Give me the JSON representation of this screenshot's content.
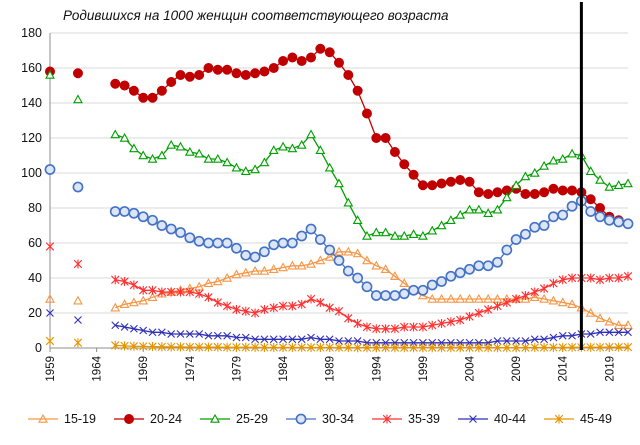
{
  "chart_data": {
    "type": "line",
    "title": "Родившихся на 1000 женщин соответствующего возраста",
    "xlabel": "",
    "ylabel": "",
    "xlim": [
      1959,
      2021
    ],
    "ylim": [
      0,
      180
    ],
    "yticks": [
      0,
      20,
      40,
      60,
      80,
      100,
      120,
      140,
      160,
      180
    ],
    "xticks": [
      1959,
      1964,
      1969,
      1974,
      1979,
      1984,
      1989,
      1994,
      1999,
      2004,
      2009,
      2014,
      2019
    ],
    "grid": "horizontal",
    "legend_position": "bottom",
    "vertical_marker_year": 2016,
    "series": [
      {
        "name": "15-19",
        "color": "#f79646",
        "marker": "triangle",
        "x": [
          1959,
          1962,
          1966,
          1967,
          1968,
          1969,
          1970,
          1971,
          1972,
          1973,
          1974,
          1975,
          1976,
          1977,
          1978,
          1979,
          1980,
          1981,
          1982,
          1983,
          1984,
          1985,
          1986,
          1987,
          1988,
          1989,
          1990,
          1991,
          1992,
          1993,
          1994,
          1995,
          1996,
          1997,
          1998,
          1999,
          2000,
          2001,
          2002,
          2003,
          2004,
          2005,
          2006,
          2007,
          2008,
          2009,
          2010,
          2011,
          2012,
          2013,
          2014,
          2015,
          2016,
          2017,
          2018,
          2019,
          2020,
          2021
        ],
        "y": [
          28,
          27,
          23,
          25,
          26,
          27,
          29,
          31,
          32,
          33,
          34,
          35,
          37,
          38,
          40,
          42,
          43,
          44,
          44,
          45,
          46,
          47,
          47,
          48,
          50,
          52,
          55,
          55,
          54,
          50,
          47,
          45,
          41,
          37,
          33,
          30,
          28,
          28,
          28,
          28,
          28,
          28,
          28,
          28,
          28,
          28,
          28,
          29,
          28,
          27,
          26,
          25,
          23,
          20,
          17,
          15,
          13,
          13
        ]
      },
      {
        "name": "20-24",
        "color": "#c00000",
        "marker": "circle",
        "x": [
          1959,
          1962,
          1966,
          1967,
          1968,
          1969,
          1970,
          1971,
          1972,
          1973,
          1974,
          1975,
          1976,
          1977,
          1978,
          1979,
          1980,
          1981,
          1982,
          1983,
          1984,
          1985,
          1986,
          1987,
          1988,
          1989,
          1990,
          1991,
          1992,
          1993,
          1994,
          1995,
          1996,
          1997,
          1998,
          1999,
          2000,
          2001,
          2002,
          2003,
          2004,
          2005,
          2006,
          2007,
          2008,
          2009,
          2010,
          2011,
          2012,
          2013,
          2014,
          2015,
          2016,
          2017,
          2018,
          2019,
          2020,
          2021
        ],
        "y": [
          158,
          157,
          151,
          150,
          147,
          143,
          143,
          147,
          152,
          156,
          155,
          156,
          160,
          159,
          159,
          157,
          156,
          157,
          158,
          160,
          164,
          166,
          164,
          166,
          171,
          169,
          163,
          156,
          147,
          134,
          120,
          120,
          112,
          105,
          99,
          93,
          93,
          94,
          95,
          96,
          95,
          89,
          88,
          89,
          90,
          91,
          88,
          88,
          89,
          91,
          90,
          90,
          89,
          85,
          80,
          75,
          73,
          71
        ]
      },
      {
        "name": "25-29",
        "color": "#00a000",
        "marker": "triangle-open",
        "x": [
          1959,
          1962,
          1966,
          1967,
          1968,
          1969,
          1970,
          1971,
          1972,
          1973,
          1974,
          1975,
          1976,
          1977,
          1978,
          1979,
          1980,
          1981,
          1982,
          1983,
          1984,
          1985,
          1986,
          1987,
          1988,
          1989,
          1990,
          1991,
          1992,
          1993,
          1994,
          1995,
          1996,
          1997,
          1998,
          1999,
          2000,
          2001,
          2002,
          2003,
          2004,
          2005,
          2006,
          2007,
          2008,
          2009,
          2010,
          2011,
          2012,
          2013,
          2014,
          2015,
          2016,
          2017,
          2018,
          2019,
          2020,
          2021
        ],
        "y": [
          156,
          142,
          122,
          120,
          114,
          110,
          108,
          110,
          116,
          115,
          112,
          111,
          108,
          108,
          106,
          103,
          101,
          102,
          106,
          113,
          115,
          114,
          116,
          122,
          113,
          103,
          94,
          83,
          73,
          64,
          66,
          66,
          64,
          64,
          65,
          64,
          67,
          70,
          73,
          76,
          79,
          79,
          77,
          79,
          86,
          93,
          98,
          100,
          104,
          107,
          108,
          111,
          110,
          101,
          96,
          92,
          93,
          94
        ]
      },
      {
        "name": "30-34",
        "color": "#4472c4",
        "marker": "circle-open",
        "x": [
          1959,
          1962,
          1966,
          1967,
          1968,
          1969,
          1970,
          1971,
          1972,
          1973,
          1974,
          1975,
          1976,
          1977,
          1978,
          1979,
          1980,
          1981,
          1982,
          1983,
          1984,
          1985,
          1986,
          1987,
          1988,
          1989,
          1990,
          1991,
          1992,
          1993,
          1994,
          1995,
          1996,
          1997,
          1998,
          1999,
          2000,
          2001,
          2002,
          2003,
          2004,
          2005,
          2006,
          2007,
          2008,
          2009,
          2010,
          2011,
          2012,
          2013,
          2014,
          2015,
          2016,
          2017,
          2018,
          2019,
          2020,
          2021
        ],
        "y": [
          102,
          92,
          78,
          78,
          77,
          75,
          73,
          70,
          68,
          66,
          63,
          61,
          60,
          60,
          60,
          57,
          53,
          52,
          55,
          59,
          60,
          60,
          64,
          68,
          62,
          56,
          50,
          44,
          40,
          35,
          30,
          30,
          30,
          31,
          33,
          33,
          36,
          38,
          41,
          43,
          45,
          47,
          47,
          49,
          56,
          62,
          65,
          69,
          70,
          75,
          76,
          81,
          84,
          78,
          75,
          73,
          72,
          71
        ]
      },
      {
        "name": "35-39",
        "color": "#ff3333",
        "marker": "asterisk",
        "x": [
          1959,
          1962,
          1966,
          1967,
          1968,
          1969,
          1970,
          1971,
          1972,
          1973,
          1974,
          1975,
          1976,
          1977,
          1978,
          1979,
          1980,
          1981,
          1982,
          1983,
          1984,
          1985,
          1986,
          1987,
          1988,
          1989,
          1990,
          1991,
          1992,
          1993,
          1994,
          1995,
          1996,
          1997,
          1998,
          1999,
          2000,
          2001,
          2002,
          2003,
          2004,
          2005,
          2006,
          2007,
          2008,
          2009,
          2010,
          2011,
          2012,
          2013,
          2014,
          2015,
          2016,
          2017,
          2018,
          2019,
          2020,
          2021
        ],
        "y": [
          58,
          48,
          39,
          38,
          36,
          33,
          33,
          32,
          32,
          32,
          32,
          31,
          29,
          26,
          24,
          22,
          21,
          20,
          22,
          23,
          24,
          24,
          25,
          28,
          26,
          23,
          21,
          17,
          14,
          12,
          11,
          11,
          11,
          12,
          12,
          12,
          13,
          14,
          15,
          16,
          18,
          20,
          22,
          24,
          26,
          28,
          30,
          32,
          34,
          37,
          39,
          40,
          40,
          40,
          39,
          40,
          40,
          41
        ]
      },
      {
        "name": "40-44",
        "color": "#2e2eb8",
        "marker": "x",
        "x": [
          1959,
          1962,
          1966,
          1967,
          1968,
          1969,
          1970,
          1971,
          1972,
          1973,
          1974,
          1975,
          1976,
          1977,
          1978,
          1979,
          1980,
          1981,
          1982,
          1983,
          1984,
          1985,
          1986,
          1987,
          1988,
          1989,
          1990,
          1991,
          1992,
          1993,
          1994,
          1995,
          1996,
          1997,
          1998,
          1999,
          2000,
          2001,
          2002,
          2003,
          2004,
          2005,
          2006,
          2007,
          2008,
          2009,
          2010,
          2011,
          2012,
          2013,
          2014,
          2015,
          2016,
          2017,
          2018,
          2019,
          2020,
          2021
        ],
        "y": [
          20,
          16,
          13,
          12,
          11,
          10,
          9,
          9,
          8,
          8,
          8,
          8,
          7,
          7,
          7,
          6,
          6,
          5,
          5,
          5,
          5,
          5,
          5,
          6,
          5,
          5,
          4,
          4,
          4,
          3,
          3,
          3,
          3,
          3,
          3,
          3,
          3,
          3,
          3,
          3,
          3,
          3,
          3,
          4,
          4,
          4,
          4,
          5,
          5,
          6,
          7,
          7,
          8,
          8,
          9,
          9,
          9,
          9
        ]
      },
      {
        "name": "45-49",
        "color": "#e69500",
        "marker": "asterisk",
        "x": [
          1959,
          1962,
          1966,
          1967,
          1968,
          1969,
          1970,
          1971,
          1972,
          1973,
          1974,
          1975,
          1976,
          1977,
          1978,
          1979,
          1980,
          1981,
          1982,
          1983,
          1984,
          1985,
          1986,
          1987,
          1988,
          1989,
          1990,
          1991,
          1992,
          1993,
          1994,
          1995,
          1996,
          1997,
          1998,
          1999,
          2000,
          2001,
          2002,
          2003,
          2004,
          2005,
          2006,
          2007,
          2008,
          2009,
          2010,
          2011,
          2012,
          2013,
          2014,
          2015,
          2016,
          2017,
          2018,
          2019,
          2020,
          2021
        ],
        "y": [
          4,
          3,
          1.5,
          1.2,
          1,
          0.9,
          0.8,
          0.7,
          0.6,
          0.6,
          0.5,
          0.5,
          0.5,
          0.5,
          0.4,
          0.4,
          0.4,
          0.4,
          0.3,
          0.3,
          0.3,
          0.3,
          0.3,
          0.3,
          0.3,
          0.3,
          0.3,
          0.3,
          0.2,
          0.2,
          0.2,
          0.2,
          0.2,
          0.2,
          0.2,
          0.2,
          0.2,
          0.2,
          0.2,
          0.2,
          0.2,
          0.2,
          0.2,
          0.2,
          0.2,
          0.2,
          0.2,
          0.3,
          0.3,
          0.3,
          0.3,
          0.4,
          0.4,
          0.4,
          0.4,
          0.5,
          0.5,
          0.5
        ]
      }
    ]
  }
}
